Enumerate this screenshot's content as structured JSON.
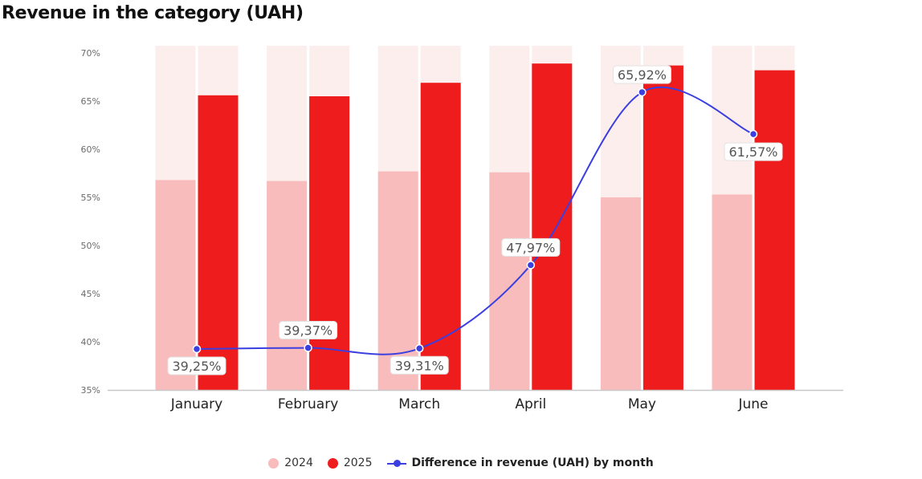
{
  "title": "Revenue in the category (UAH)",
  "legend": {
    "s2024": "2024",
    "s2025": "2025",
    "diff": "Difference in revenue (UAH) by month"
  },
  "colors": {
    "s2024": "#f9bcbc",
    "s2025": "#ee1c1c",
    "band": "#fdeeee",
    "line": "#3b3fe0"
  },
  "chart_data": {
    "type": "bar",
    "categories": [
      "January",
      "February",
      "March",
      "April",
      "May",
      "June"
    ],
    "ylim": [
      35,
      70
    ],
    "yticks": [
      35,
      40,
      45,
      50,
      55,
      60,
      65,
      70
    ],
    "ytick_labels": [
      "35%",
      "40%",
      "45%",
      "50%",
      "55%",
      "60%",
      "65%",
      "70%"
    ],
    "series": [
      {
        "name": "2024",
        "type": "bar",
        "values": [
          56.8,
          56.7,
          57.7,
          57.6,
          55.0,
          55.3
        ]
      },
      {
        "name": "2025",
        "type": "bar",
        "values": [
          65.6,
          65.5,
          66.9,
          68.9,
          68.7,
          68.2
        ]
      },
      {
        "name": "Difference in revenue (UAH) by month",
        "type": "line",
        "values": [
          39.25,
          39.37,
          39.31,
          47.97,
          65.92,
          61.57
        ]
      }
    ],
    "data_labels": [
      "39,25%",
      "39,37%",
      "39,31%",
      "47,97%",
      "65,92%",
      "61,57%"
    ]
  }
}
